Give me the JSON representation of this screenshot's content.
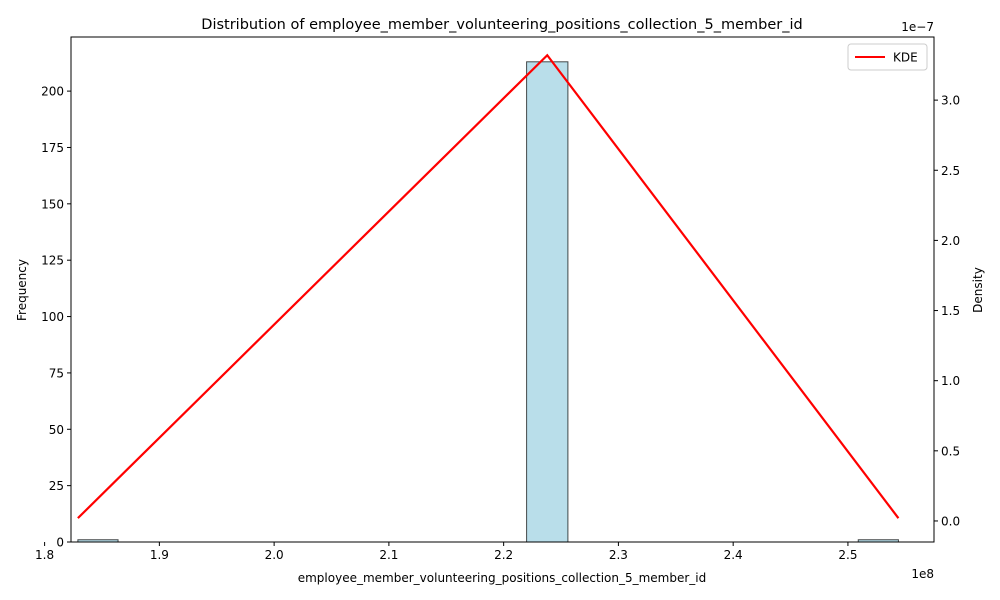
{
  "chart_data": {
    "type": "bar",
    "title": "Distribution of employee_member_volunteering_positions_collection_5_member_id",
    "xlabel": "employee_member_volunteering_positions_collection_5_member_id",
    "ylabel": "Frequency",
    "y2label": "Density",
    "x_offset_label": "1e8",
    "y2_offset_label": "1e−7",
    "x_ticks": [
      "1.8",
      "1.9",
      "2.0",
      "2.1",
      "2.2",
      "2.3",
      "2.4",
      "2.5"
    ],
    "y_ticks": [
      "0",
      "25",
      "50",
      "75",
      "100",
      "125",
      "150",
      "175",
      "200"
    ],
    "y2_ticks": [
      "0.0",
      "0.5",
      "1.0",
      "1.5",
      "2.0",
      "2.5",
      "3.0"
    ],
    "xlim": [
      182300000,
      257500000
    ],
    "ylim": [
      0,
      224
    ],
    "y2lim": [
      -1.5e-08,
      3.45e-07
    ],
    "histogram": {
      "bins": [
        {
          "start": 182900000,
          "end": 186400000,
          "count": 1
        },
        {
          "start": 222000000,
          "end": 225600000,
          "count": 213
        },
        {
          "start": 250900000,
          "end": 254400000,
          "count": 1
        }
      ],
      "color": "#add8e6",
      "edge_color": "#000000"
    },
    "kde": {
      "name": "KDE",
      "color": "#ff0000",
      "x": [
        182900000,
        223800000,
        254400000
      ],
      "y": [
        2e-09,
        3.32e-07,
        2e-09
      ]
    },
    "legend": {
      "position": "top-right",
      "entries": [
        "KDE"
      ]
    }
  }
}
